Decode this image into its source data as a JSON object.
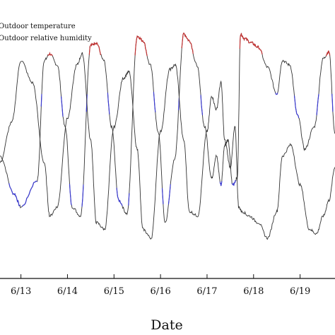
{
  "chart_data": {
    "type": "line",
    "xlabel": "Date",
    "x_tick_labels": [
      "6/13",
      "6/14",
      "6/15",
      "6/16",
      "6/17",
      "6/18",
      "6/19"
    ],
    "x_ticks": [
      13,
      14,
      15,
      16,
      17,
      18,
      19
    ],
    "xlim": [
      12.55,
      19.75
    ],
    "y_relative_range": [
      0,
      1
    ],
    "legend": {
      "placement": "top-left"
    },
    "grid": false,
    "series": [
      {
        "name": "Outdoor temperature",
        "color": "#333333",
        "highlight_colors": {
          "low": "#3a3ad0",
          "high": "#c03030"
        },
        "x": [
          12.55,
          12.85,
          13.0,
          13.35,
          13.5,
          13.62,
          13.78,
          13.95,
          14.1,
          14.28,
          14.5,
          14.62,
          14.78,
          14.95,
          15.1,
          15.28,
          15.5,
          15.62,
          15.78,
          15.95,
          16.1,
          16.3,
          16.5,
          16.62,
          16.78,
          16.95,
          17.1,
          17.2,
          17.3,
          17.38,
          17.45,
          17.55,
          17.65,
          17.72,
          17.8,
          17.95,
          18.1,
          18.3,
          18.5,
          18.62,
          18.78,
          18.95,
          19.1,
          19.3,
          19.5,
          19.62,
          19.75
        ],
        "y": [
          0.45,
          0.28,
          0.22,
          0.34,
          0.88,
          0.91,
          0.86,
          0.58,
          0.22,
          0.18,
          0.95,
          0.96,
          0.88,
          0.58,
          0.25,
          0.19,
          0.99,
          0.97,
          0.86,
          0.56,
          0.15,
          0.43,
          1.0,
          0.97,
          0.86,
          0.58,
          0.35,
          0.45,
          0.32,
          0.5,
          0.52,
          0.32,
          0.35,
          1.0,
          0.98,
          0.96,
          0.94,
          0.85,
          0.73,
          0.88,
          0.86,
          0.63,
          0.48,
          0.58,
          0.89,
          0.92,
          0.55
        ]
      },
      {
        "name": "Outdoor relative humidity",
        "color": "#333333",
        "x": [
          12.55,
          12.8,
          13.0,
          13.25,
          13.5,
          13.62,
          13.78,
          14.0,
          14.2,
          14.32,
          14.5,
          14.62,
          14.8,
          15.0,
          15.2,
          15.32,
          15.5,
          15.62,
          15.8,
          16.0,
          16.2,
          16.32,
          16.5,
          16.62,
          16.8,
          17.0,
          17.1,
          17.2,
          17.3,
          17.38,
          17.5,
          17.6,
          17.68,
          17.75,
          17.9,
          18.1,
          18.3,
          18.5,
          18.62,
          18.8,
          19.0,
          19.2,
          19.35,
          19.5,
          19.62,
          19.75
        ],
        "y": [
          0.42,
          0.6,
          0.88,
          0.78,
          0.42,
          0.18,
          0.22,
          0.62,
          0.86,
          0.91,
          0.52,
          0.15,
          0.12,
          0.58,
          0.8,
          0.83,
          0.48,
          0.12,
          0.08,
          0.56,
          0.84,
          0.86,
          0.52,
          0.2,
          0.18,
          0.56,
          0.72,
          0.66,
          0.78,
          0.52,
          0.4,
          0.58,
          0.22,
          0.2,
          0.18,
          0.15,
          0.08,
          0.2,
          0.45,
          0.5,
          0.32,
          0.12,
          0.1,
          0.18,
          0.25,
          0.4
        ]
      }
    ]
  }
}
